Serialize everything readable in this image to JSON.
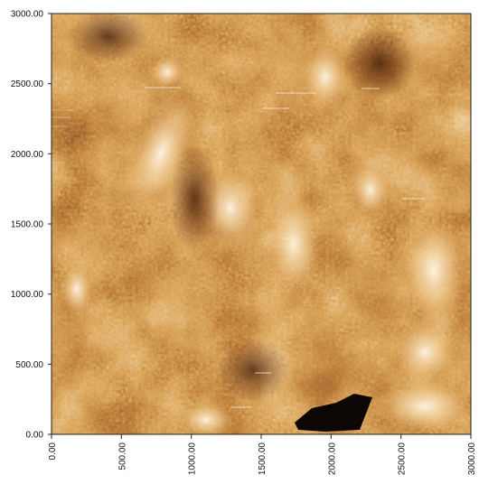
{
  "image": {
    "kind": "AFM height map",
    "palette": [
      "#1b0a04",
      "#5a1f06",
      "#8a3a0e",
      "#b8651e",
      "#d99a4e",
      "#f2d3a0",
      "#fff3dd"
    ]
  },
  "axes": {
    "x_ticks": [
      "0.00",
      "500.00",
      "1000.00",
      "1500.00",
      "2000.00",
      "2500.00",
      "3000.00"
    ],
    "y_ticks": [
      "0.00",
      "500.00",
      "1000.00",
      "1500.00",
      "2000.00",
      "2500.00",
      "3000.00"
    ]
  }
}
